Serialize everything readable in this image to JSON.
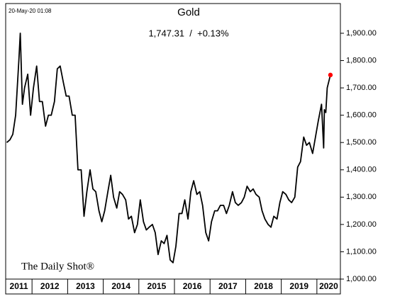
{
  "chart_data": {
    "type": "line",
    "title": "Gold",
    "timestamp": "20-May-20 01:08",
    "annotation": "1,747.31  /  +0.13%",
    "source": "The Daily Shot®",
    "x": [
      2011.29,
      2011.38,
      2011.46,
      2011.54,
      2011.63,
      2011.67,
      2011.73,
      2011.79,
      2011.88,
      2011.96,
      2012.04,
      2012.13,
      2012.21,
      2012.29,
      2012.38,
      2012.46,
      2012.54,
      2012.63,
      2012.71,
      2012.79,
      2012.88,
      2012.96,
      2013.04,
      2013.13,
      2013.21,
      2013.29,
      2013.38,
      2013.46,
      2013.54,
      2013.63,
      2013.71,
      2013.79,
      2013.88,
      2013.96,
      2014.04,
      2014.13,
      2014.21,
      2014.29,
      2014.38,
      2014.46,
      2014.54,
      2014.63,
      2014.71,
      2014.79,
      2014.88,
      2014.96,
      2015.04,
      2015.13,
      2015.21,
      2015.29,
      2015.38,
      2015.46,
      2015.54,
      2015.63,
      2015.71,
      2015.79,
      2015.88,
      2015.96,
      2016.04,
      2016.13,
      2016.21,
      2016.29,
      2016.38,
      2016.46,
      2016.54,
      2016.63,
      2016.71,
      2016.79,
      2016.88,
      2016.96,
      2017.04,
      2017.13,
      2017.21,
      2017.29,
      2017.38,
      2017.46,
      2017.54,
      2017.63,
      2017.71,
      2017.79,
      2017.88,
      2017.96,
      2018.04,
      2018.13,
      2018.21,
      2018.29,
      2018.38,
      2018.46,
      2018.54,
      2018.63,
      2018.71,
      2018.79,
      2018.88,
      2018.96,
      2019.04,
      2019.13,
      2019.21,
      2019.29,
      2019.38,
      2019.46,
      2019.54,
      2019.63,
      2019.71,
      2019.79,
      2019.88,
      2019.96,
      2020.04,
      2020.13,
      2020.19,
      2020.21,
      2020.25,
      2020.29,
      2020.38
    ],
    "values": [
      1500,
      1510,
      1530,
      1600,
      1800,
      1900,
      1640,
      1700,
      1750,
      1600,
      1700,
      1780,
      1650,
      1650,
      1560,
      1600,
      1600,
      1650,
      1770,
      1780,
      1720,
      1670,
      1670,
      1600,
      1600,
      1400,
      1400,
      1230,
      1320,
      1400,
      1330,
      1320,
      1250,
      1210,
      1250,
      1320,
      1380,
      1300,
      1260,
      1320,
      1310,
      1290,
      1220,
      1230,
      1170,
      1200,
      1290,
      1210,
      1180,
      1190,
      1200,
      1170,
      1090,
      1140,
      1130,
      1160,
      1070,
      1060,
      1120,
      1240,
      1240,
      1290,
      1220,
      1320,
      1360,
      1310,
      1320,
      1270,
      1170,
      1140,
      1210,
      1250,
      1250,
      1270,
      1270,
      1240,
      1270,
      1320,
      1280,
      1270,
      1280,
      1300,
      1340,
      1320,
      1330,
      1310,
      1300,
      1250,
      1220,
      1200,
      1190,
      1230,
      1220,
      1280,
      1320,
      1310,
      1290,
      1280,
      1300,
      1410,
      1430,
      1520,
      1490,
      1500,
      1460,
      1520,
      1580,
      1640,
      1480,
      1620,
      1610,
      1700,
      1747.31
    ],
    "color": "#000000",
    "last_point_color": "#ff0000",
    "xlim": [
      2011.26,
      2020.66
    ],
    "xticks": [
      2012,
      2013,
      2014,
      2015,
      2016,
      2017,
      2018,
      2019,
      2020
    ],
    "categories": [
      "2011",
      "2012",
      "2013",
      "2014",
      "2015",
      "2016",
      "2017",
      "2018",
      "2019",
      "2020"
    ],
    "ylim": [
      1000,
      2000
    ],
    "yticks": [
      {
        "value": 1000,
        "label": "1,000.00"
      },
      {
        "value": 1100,
        "label": "1,100.00"
      },
      {
        "value": 1200,
        "label": "1,200.00"
      },
      {
        "value": 1300,
        "label": "1,300.00"
      },
      {
        "value": 1400,
        "label": "1,400.00"
      },
      {
        "value": 1500,
        "label": "1,500.00"
      },
      {
        "value": 1600,
        "label": "1,600.00"
      },
      {
        "value": 1700,
        "label": "1,700.00"
      },
      {
        "value": 1800,
        "label": "1,800.00"
      },
      {
        "value": 1900,
        "label": "1,900.00"
      }
    ]
  }
}
